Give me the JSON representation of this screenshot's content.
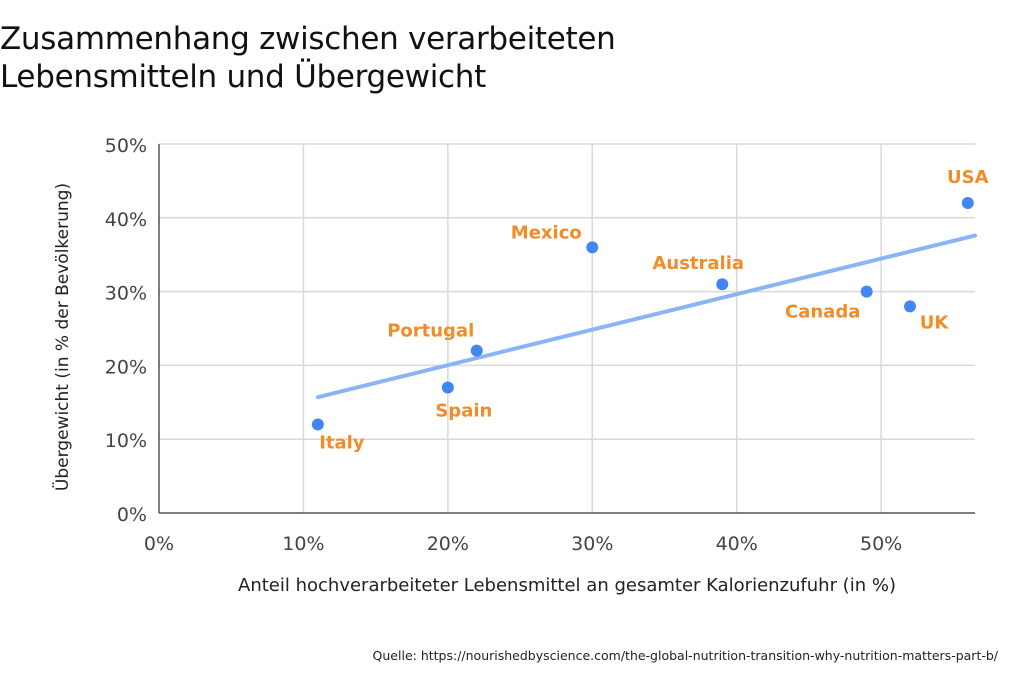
{
  "title_lines": [
    "Zusammenhang zwischen verarbeiteten",
    "Lebensmitteln und Übergewicht"
  ],
  "source": "Quelle: https://nourishedbyscience.com/the-global-nutrition-transition-why-nutrition-matters-part-b/",
  "colors": {
    "point": "#4285f4",
    "label": "#f28c28",
    "trend": "#8ab4f8",
    "grid": "#d9d9d9",
    "axis": "#333333"
  },
  "chart_data": {
    "type": "scatter",
    "title": "Zusammenhang zwischen verarbeiteten Lebensmitteln und Übergewicht",
    "xlabel": "Anteil hochverarbeiteter Lebensmittel an gesamter Kalorienzufuhr (in %)",
    "ylabel": "Übergewicht (in % der Bevölkerung)",
    "xlim": [
      0,
      56.5
    ],
    "ylim": [
      0,
      50
    ],
    "x_ticks": [
      0,
      10,
      20,
      30,
      40,
      50
    ],
    "y_ticks": [
      0,
      10,
      20,
      30,
      40,
      50
    ],
    "x_tick_labels": [
      "0%",
      "10%",
      "20%",
      "30%",
      "40%",
      "50%"
    ],
    "y_tick_labels": [
      "0%",
      "10%",
      "20%",
      "30%",
      "40%",
      "50%"
    ],
    "grid": true,
    "points": [
      {
        "label": "Italy",
        "x": 11,
        "y": 12
      },
      {
        "label": "Spain",
        "x": 20,
        "y": 17
      },
      {
        "label": "Portugal",
        "x": 22,
        "y": 22
      },
      {
        "label": "Mexico",
        "x": 30,
        "y": 36
      },
      {
        "label": "Australia",
        "x": 39,
        "y": 31
      },
      {
        "label": "Canada",
        "x": 49,
        "y": 30
      },
      {
        "label": "UK",
        "x": 52,
        "y": 28
      },
      {
        "label": "USA",
        "x": 56,
        "y": 42
      }
    ],
    "trendline": {
      "x": [
        11,
        56.5
      ],
      "y": [
        15.7,
        37.6
      ]
    }
  }
}
